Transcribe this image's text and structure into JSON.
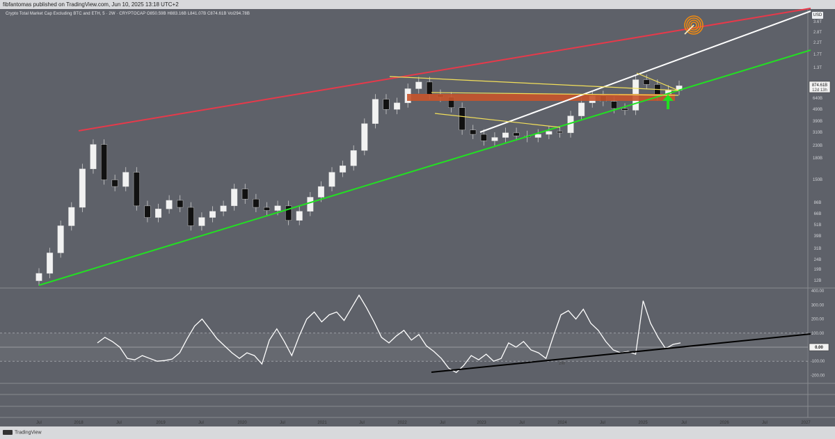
{
  "header": {
    "publisher": "fibfantomas published on TradingView.com, Jun 10, 2025 13:18 UTC+2",
    "symbol_line": "Crypto Total Market Cap Excluding BTC and ETH, 5 · 2W · CRYPTOCAP  O850.59B  H883.16B  L841.07B  C874.61B  Vol294.78B"
  },
  "footer": {
    "brand": "TradingView"
  },
  "price_axis": {
    "currency": "USD",
    "last_price": "874.61B",
    "countdown": "12d 13h"
  },
  "colors": {
    "background": "#5e6169",
    "resistance": "#e8394a",
    "support": "#22e022",
    "channel_mid": "#ffffff",
    "triangle": "#f3e05a",
    "zone": "#c8542b",
    "target": "#f08a10"
  },
  "chart_data": [
    {
      "type": "candlestick",
      "scale": "log",
      "y_tick_labels": [
        "12B",
        "19B",
        "24B",
        "31B",
        "39B",
        "51B",
        "66B",
        "86B",
        "150B",
        "180B",
        "230B",
        "310B",
        "390B",
        "490B",
        "640B",
        "1T",
        "1.3T",
        "1.7T",
        "2.2T",
        "2.8T",
        "3.6T"
      ],
      "x_tick_labels": [
        "Jul",
        "2018",
        "Jul",
        "2019",
        "Jul",
        "2020",
        "Jul",
        "2021",
        "Jul",
        "2022",
        "Jul",
        "2023",
        "Jul",
        "2024",
        "Jul",
        "2025",
        "Jul",
        "2026",
        "Jul",
        "2027"
      ],
      "closes_approx_B": [
        14,
        22,
        40,
        60,
        140,
        240,
        110,
        95,
        130,
        62,
        48,
        58,
        70,
        60,
        40,
        48,
        55,
        62,
        90,
        72,
        60,
        56,
        62,
        45,
        55,
        75,
        95,
        130,
        150,
        210,
        380,
        650,
        520,
        600,
        820,
        950,
        720,
        680,
        540,
        330,
        300,
        260,
        280,
        310,
        290,
        280,
        300,
        320,
        310,
        450,
        600,
        700,
        620,
        530,
        510,
        1000,
        900,
        700,
        790,
        874.61
      ],
      "annotations": [
        "resistance trendline",
        "support trendline",
        "channel midline",
        "descending triangle",
        "supply/demand zone",
        "target"
      ]
    },
    {
      "type": "line",
      "indicator_label": "2W",
      "y_tick_labels": [
        "400.00",
        "300.00",
        "200.00",
        "100.00",
        "0.00",
        "-100.00",
        "-200.00"
      ],
      "last_value": "0.00",
      "values_approx": [
        30,
        70,
        40,
        0,
        -80,
        -90,
        -60,
        -80,
        -100,
        -95,
        -85,
        -40,
        60,
        150,
        200,
        130,
        60,
        10,
        -40,
        -80,
        -40,
        -60,
        -120,
        50,
        130,
        40,
        -60,
        80,
        200,
        250,
        180,
        230,
        250,
        190,
        280,
        370,
        280,
        180,
        70,
        30,
        80,
        120,
        50,
        90,
        10,
        -30,
        -80,
        -150,
        -180,
        -130,
        -60,
        -90,
        -50,
        -100,
        -80,
        30,
        0,
        40,
        -20,
        -40,
        -80,
        80,
        230,
        260,
        200,
        270,
        170,
        120,
        40,
        -20,
        -40,
        -30,
        -50,
        330,
        170,
        70,
        -10,
        20,
        30
      ]
    }
  ]
}
